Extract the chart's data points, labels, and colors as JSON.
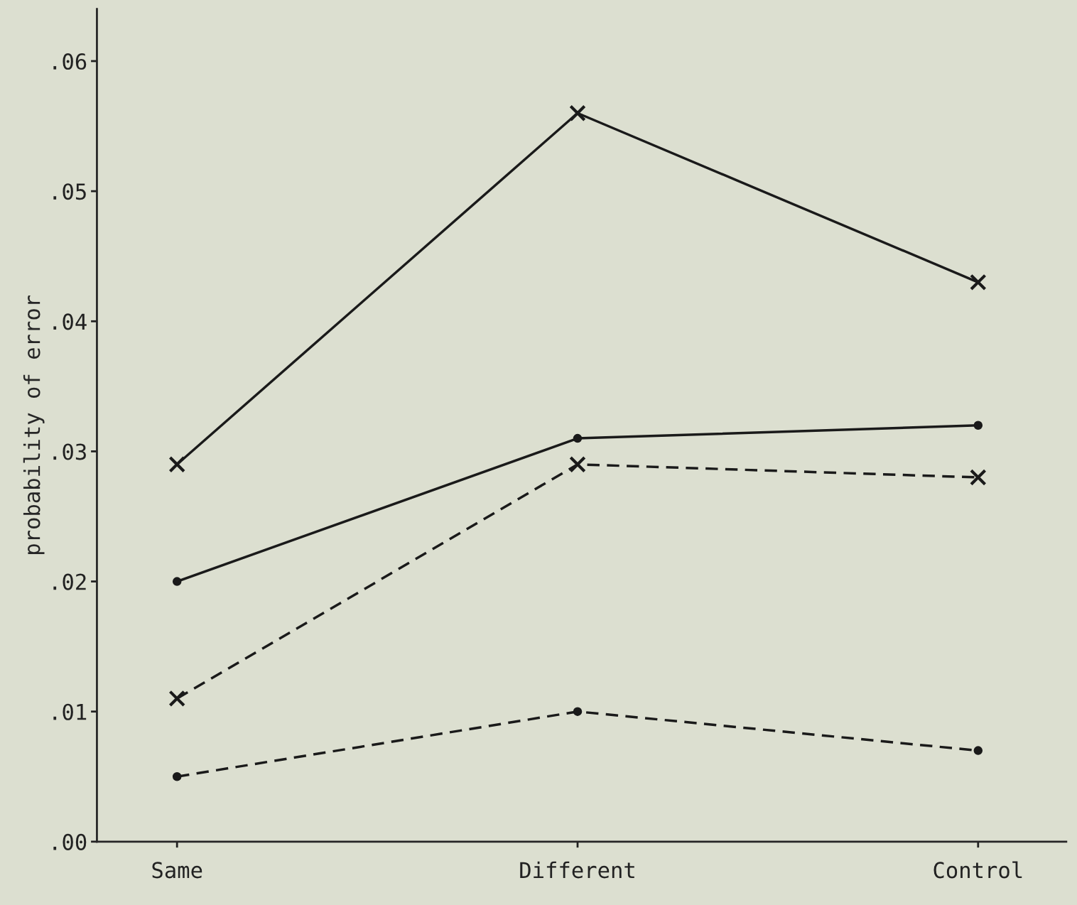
{
  "chart_data": {
    "type": "line",
    "ylabel": "probability of error",
    "categories": [
      "Same",
      "Different",
      "Control"
    ],
    "series": [
      {
        "color": "#1a1a1a",
        "marker": "cross",
        "line_style": "solid",
        "values": [
          0.029,
          0.056,
          0.043
        ]
      },
      {
        "color": "#1a1a1a",
        "marker": "circle",
        "line_style": "solid",
        "values": [
          0.02,
          0.031,
          0.032
        ]
      },
      {
        "color": "#1a1a1a",
        "marker": "cross",
        "line_style": "dashed",
        "values": [
          0.011,
          0.029,
          0.028
        ]
      },
      {
        "color": "#1a1a1a",
        "marker": "circle",
        "line_style": "dashed",
        "values": [
          0.005,
          0.01,
          0.007
        ]
      }
    ],
    "ylim": [
      0,
      0.064
    ],
    "yticks": [
      {
        "value": 0,
        "label": ".00"
      },
      {
        "value": 0.01,
        "label": ".01"
      },
      {
        "value": 0.02,
        "label": ".02"
      },
      {
        "value": 0.03,
        "label": ".03"
      },
      {
        "value": 0.04,
        "label": ".04"
      },
      {
        "value": 0.05,
        "label": ".05"
      },
      {
        "value": 0.06,
        "label": ".06"
      }
    ],
    "grid": false,
    "legend": false
  }
}
